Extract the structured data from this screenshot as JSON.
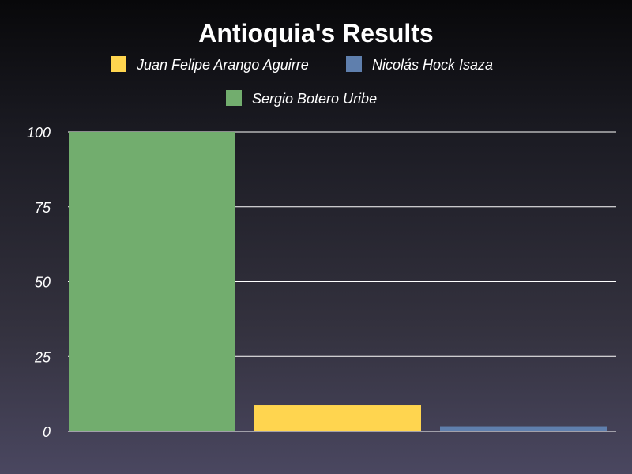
{
  "chart_data": {
    "type": "bar",
    "title": "Antioquia's Results",
    "xlabel": "",
    "ylabel": "",
    "ylim": [
      0,
      100
    ],
    "yticks": [
      "0",
      "25",
      "50",
      "75",
      "100"
    ],
    "grid": true,
    "legend_position": "top",
    "series": [
      {
        "name": "Sergio Botero Uribe",
        "value": 100,
        "color": "#72ad6e"
      },
      {
        "name": "Juan Felipe Arango Aguirre",
        "value": 8.7,
        "color": "#ffd54f"
      },
      {
        "name": "Nicolás Hock Isaza",
        "value": 1.7,
        "color": "#5f7fad"
      }
    ]
  }
}
